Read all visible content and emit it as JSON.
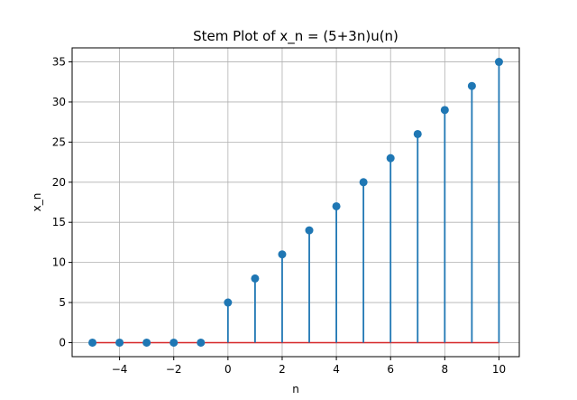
{
  "chart_data": {
    "type": "stem",
    "title": "Stem Plot of x_n = (5+3n)u(n)",
    "xlabel": "n",
    "ylabel": "x_n",
    "x": [
      -5,
      -4,
      -3,
      -2,
      -1,
      0,
      1,
      2,
      3,
      4,
      5,
      6,
      7,
      8,
      9,
      10
    ],
    "y": [
      0,
      0,
      0,
      0,
      0,
      5,
      8,
      11,
      14,
      17,
      20,
      23,
      26,
      29,
      32,
      35
    ],
    "xlim": [
      -5.75,
      10.75
    ],
    "ylim": [
      -1.75,
      36.75
    ],
    "xticks": [
      -4,
      -2,
      0,
      2,
      4,
      6,
      8,
      10
    ],
    "xtick_labels": [
      "−4",
      "−2",
      "0",
      "2",
      "4",
      "6",
      "8",
      "10"
    ],
    "yticks": [
      0,
      5,
      10,
      15,
      20,
      25,
      30,
      35
    ],
    "ytick_labels": [
      "0",
      "5",
      "10",
      "15",
      "20",
      "25",
      "30",
      "35"
    ],
    "grid": true,
    "colors": {
      "stem": "#1f77b4",
      "marker": "#1f77b4",
      "baseline": "#d62728",
      "grid": "#b0b0b0"
    }
  }
}
